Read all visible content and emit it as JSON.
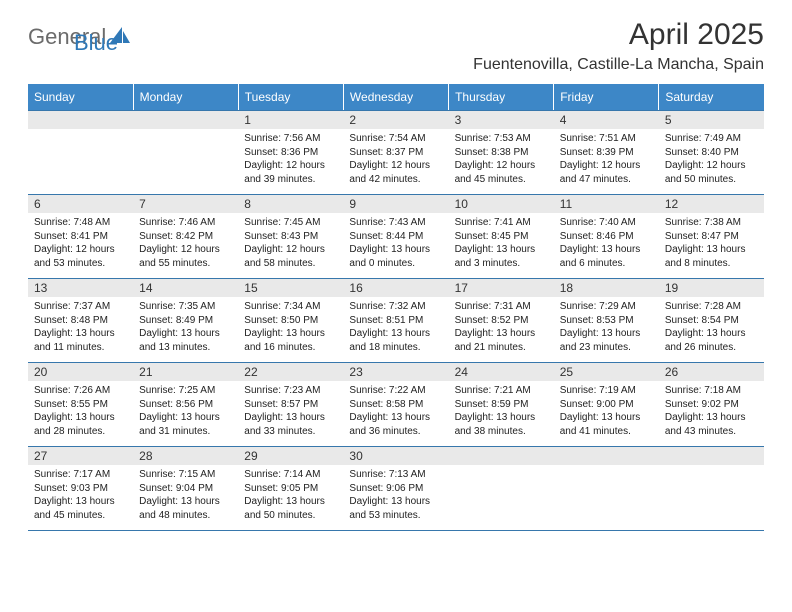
{
  "logo": {
    "text_general": "General",
    "text_blue": "Blue"
  },
  "title": "April 2025",
  "location": "Fuentenovilla, Castille-La Mancha, Spain",
  "colors": {
    "header_bg": "#3d87c7",
    "header_text": "#ffffff",
    "daynum_bg": "#e9e9e9",
    "cell_border": "#3777ac",
    "logo_gray": "#6b6b6b",
    "logo_blue": "#2f78b7",
    "page_bg": "#ffffff",
    "text": "#222222"
  },
  "weekdays": [
    "Sunday",
    "Monday",
    "Tuesday",
    "Wednesday",
    "Thursday",
    "Friday",
    "Saturday"
  ],
  "weeks": [
    [
      {
        "day": null
      },
      {
        "day": null
      },
      {
        "day": 1,
        "sunrise": "7:56 AM",
        "sunset": "8:36 PM",
        "daylight": "12 hours and 39 minutes."
      },
      {
        "day": 2,
        "sunrise": "7:54 AM",
        "sunset": "8:37 PM",
        "daylight": "12 hours and 42 minutes."
      },
      {
        "day": 3,
        "sunrise": "7:53 AM",
        "sunset": "8:38 PM",
        "daylight": "12 hours and 45 minutes."
      },
      {
        "day": 4,
        "sunrise": "7:51 AM",
        "sunset": "8:39 PM",
        "daylight": "12 hours and 47 minutes."
      },
      {
        "day": 5,
        "sunrise": "7:49 AM",
        "sunset": "8:40 PM",
        "daylight": "12 hours and 50 minutes."
      }
    ],
    [
      {
        "day": 6,
        "sunrise": "7:48 AM",
        "sunset": "8:41 PM",
        "daylight": "12 hours and 53 minutes."
      },
      {
        "day": 7,
        "sunrise": "7:46 AM",
        "sunset": "8:42 PM",
        "daylight": "12 hours and 55 minutes."
      },
      {
        "day": 8,
        "sunrise": "7:45 AM",
        "sunset": "8:43 PM",
        "daylight": "12 hours and 58 minutes."
      },
      {
        "day": 9,
        "sunrise": "7:43 AM",
        "sunset": "8:44 PM",
        "daylight": "13 hours and 0 minutes."
      },
      {
        "day": 10,
        "sunrise": "7:41 AM",
        "sunset": "8:45 PM",
        "daylight": "13 hours and 3 minutes."
      },
      {
        "day": 11,
        "sunrise": "7:40 AM",
        "sunset": "8:46 PM",
        "daylight": "13 hours and 6 minutes."
      },
      {
        "day": 12,
        "sunrise": "7:38 AM",
        "sunset": "8:47 PM",
        "daylight": "13 hours and 8 minutes."
      }
    ],
    [
      {
        "day": 13,
        "sunrise": "7:37 AM",
        "sunset": "8:48 PM",
        "daylight": "13 hours and 11 minutes."
      },
      {
        "day": 14,
        "sunrise": "7:35 AM",
        "sunset": "8:49 PM",
        "daylight": "13 hours and 13 minutes."
      },
      {
        "day": 15,
        "sunrise": "7:34 AM",
        "sunset": "8:50 PM",
        "daylight": "13 hours and 16 minutes."
      },
      {
        "day": 16,
        "sunrise": "7:32 AM",
        "sunset": "8:51 PM",
        "daylight": "13 hours and 18 minutes."
      },
      {
        "day": 17,
        "sunrise": "7:31 AM",
        "sunset": "8:52 PM",
        "daylight": "13 hours and 21 minutes."
      },
      {
        "day": 18,
        "sunrise": "7:29 AM",
        "sunset": "8:53 PM",
        "daylight": "13 hours and 23 minutes."
      },
      {
        "day": 19,
        "sunrise": "7:28 AM",
        "sunset": "8:54 PM",
        "daylight": "13 hours and 26 minutes."
      }
    ],
    [
      {
        "day": 20,
        "sunrise": "7:26 AM",
        "sunset": "8:55 PM",
        "daylight": "13 hours and 28 minutes."
      },
      {
        "day": 21,
        "sunrise": "7:25 AM",
        "sunset": "8:56 PM",
        "daylight": "13 hours and 31 minutes."
      },
      {
        "day": 22,
        "sunrise": "7:23 AM",
        "sunset": "8:57 PM",
        "daylight": "13 hours and 33 minutes."
      },
      {
        "day": 23,
        "sunrise": "7:22 AM",
        "sunset": "8:58 PM",
        "daylight": "13 hours and 36 minutes."
      },
      {
        "day": 24,
        "sunrise": "7:21 AM",
        "sunset": "8:59 PM",
        "daylight": "13 hours and 38 minutes."
      },
      {
        "day": 25,
        "sunrise": "7:19 AM",
        "sunset": "9:00 PM",
        "daylight": "13 hours and 41 minutes."
      },
      {
        "day": 26,
        "sunrise": "7:18 AM",
        "sunset": "9:02 PM",
        "daylight": "13 hours and 43 minutes."
      }
    ],
    [
      {
        "day": 27,
        "sunrise": "7:17 AM",
        "sunset": "9:03 PM",
        "daylight": "13 hours and 45 minutes."
      },
      {
        "day": 28,
        "sunrise": "7:15 AM",
        "sunset": "9:04 PM",
        "daylight": "13 hours and 48 minutes."
      },
      {
        "day": 29,
        "sunrise": "7:14 AM",
        "sunset": "9:05 PM",
        "daylight": "13 hours and 50 minutes."
      },
      {
        "day": 30,
        "sunrise": "7:13 AM",
        "sunset": "9:06 PM",
        "daylight": "13 hours and 53 minutes."
      },
      {
        "day": null
      },
      {
        "day": null
      },
      {
        "day": null
      }
    ]
  ]
}
